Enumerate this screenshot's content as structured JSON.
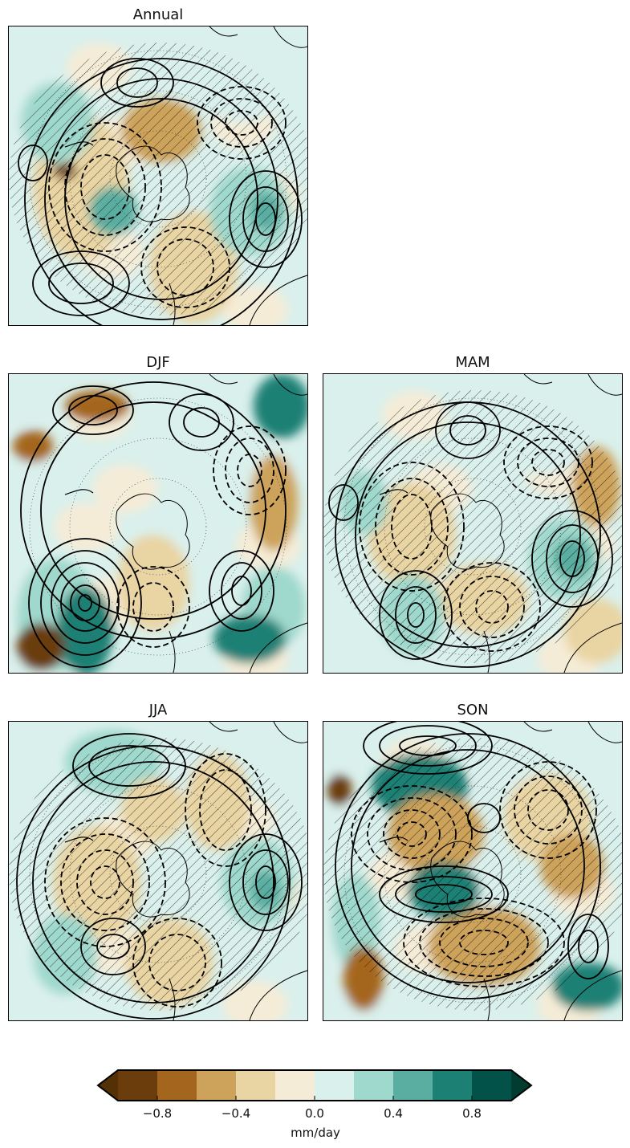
{
  "panels": [
    {
      "id": "annual",
      "title": "Annual"
    },
    {
      "id": "djf",
      "title": "DJF"
    },
    {
      "id": "mam",
      "title": "MAM"
    },
    {
      "id": "jja",
      "title": "JJA"
    },
    {
      "id": "son",
      "title": "SON"
    }
  ],
  "colorbar": {
    "label": "mm/day",
    "ticks": [
      "−0.8",
      "−0.4",
      "0.0",
      "0.4",
      "0.8"
    ],
    "levels": [
      -1.0,
      -0.8,
      -0.6,
      -0.4,
      -0.2,
      0.0,
      0.2,
      0.4,
      0.6,
      0.8,
      1.0
    ],
    "colors": [
      "#6b3d0d",
      "#a4661f",
      "#cda25a",
      "#e9d4a3",
      "#f5ecd7",
      "#daf0ec",
      "#9fd8cc",
      "#5aaea1",
      "#1c8074",
      "#03524a"
    ],
    "extend_colors": {
      "low": "#543005",
      "high": "#003c30"
    }
  }
}
